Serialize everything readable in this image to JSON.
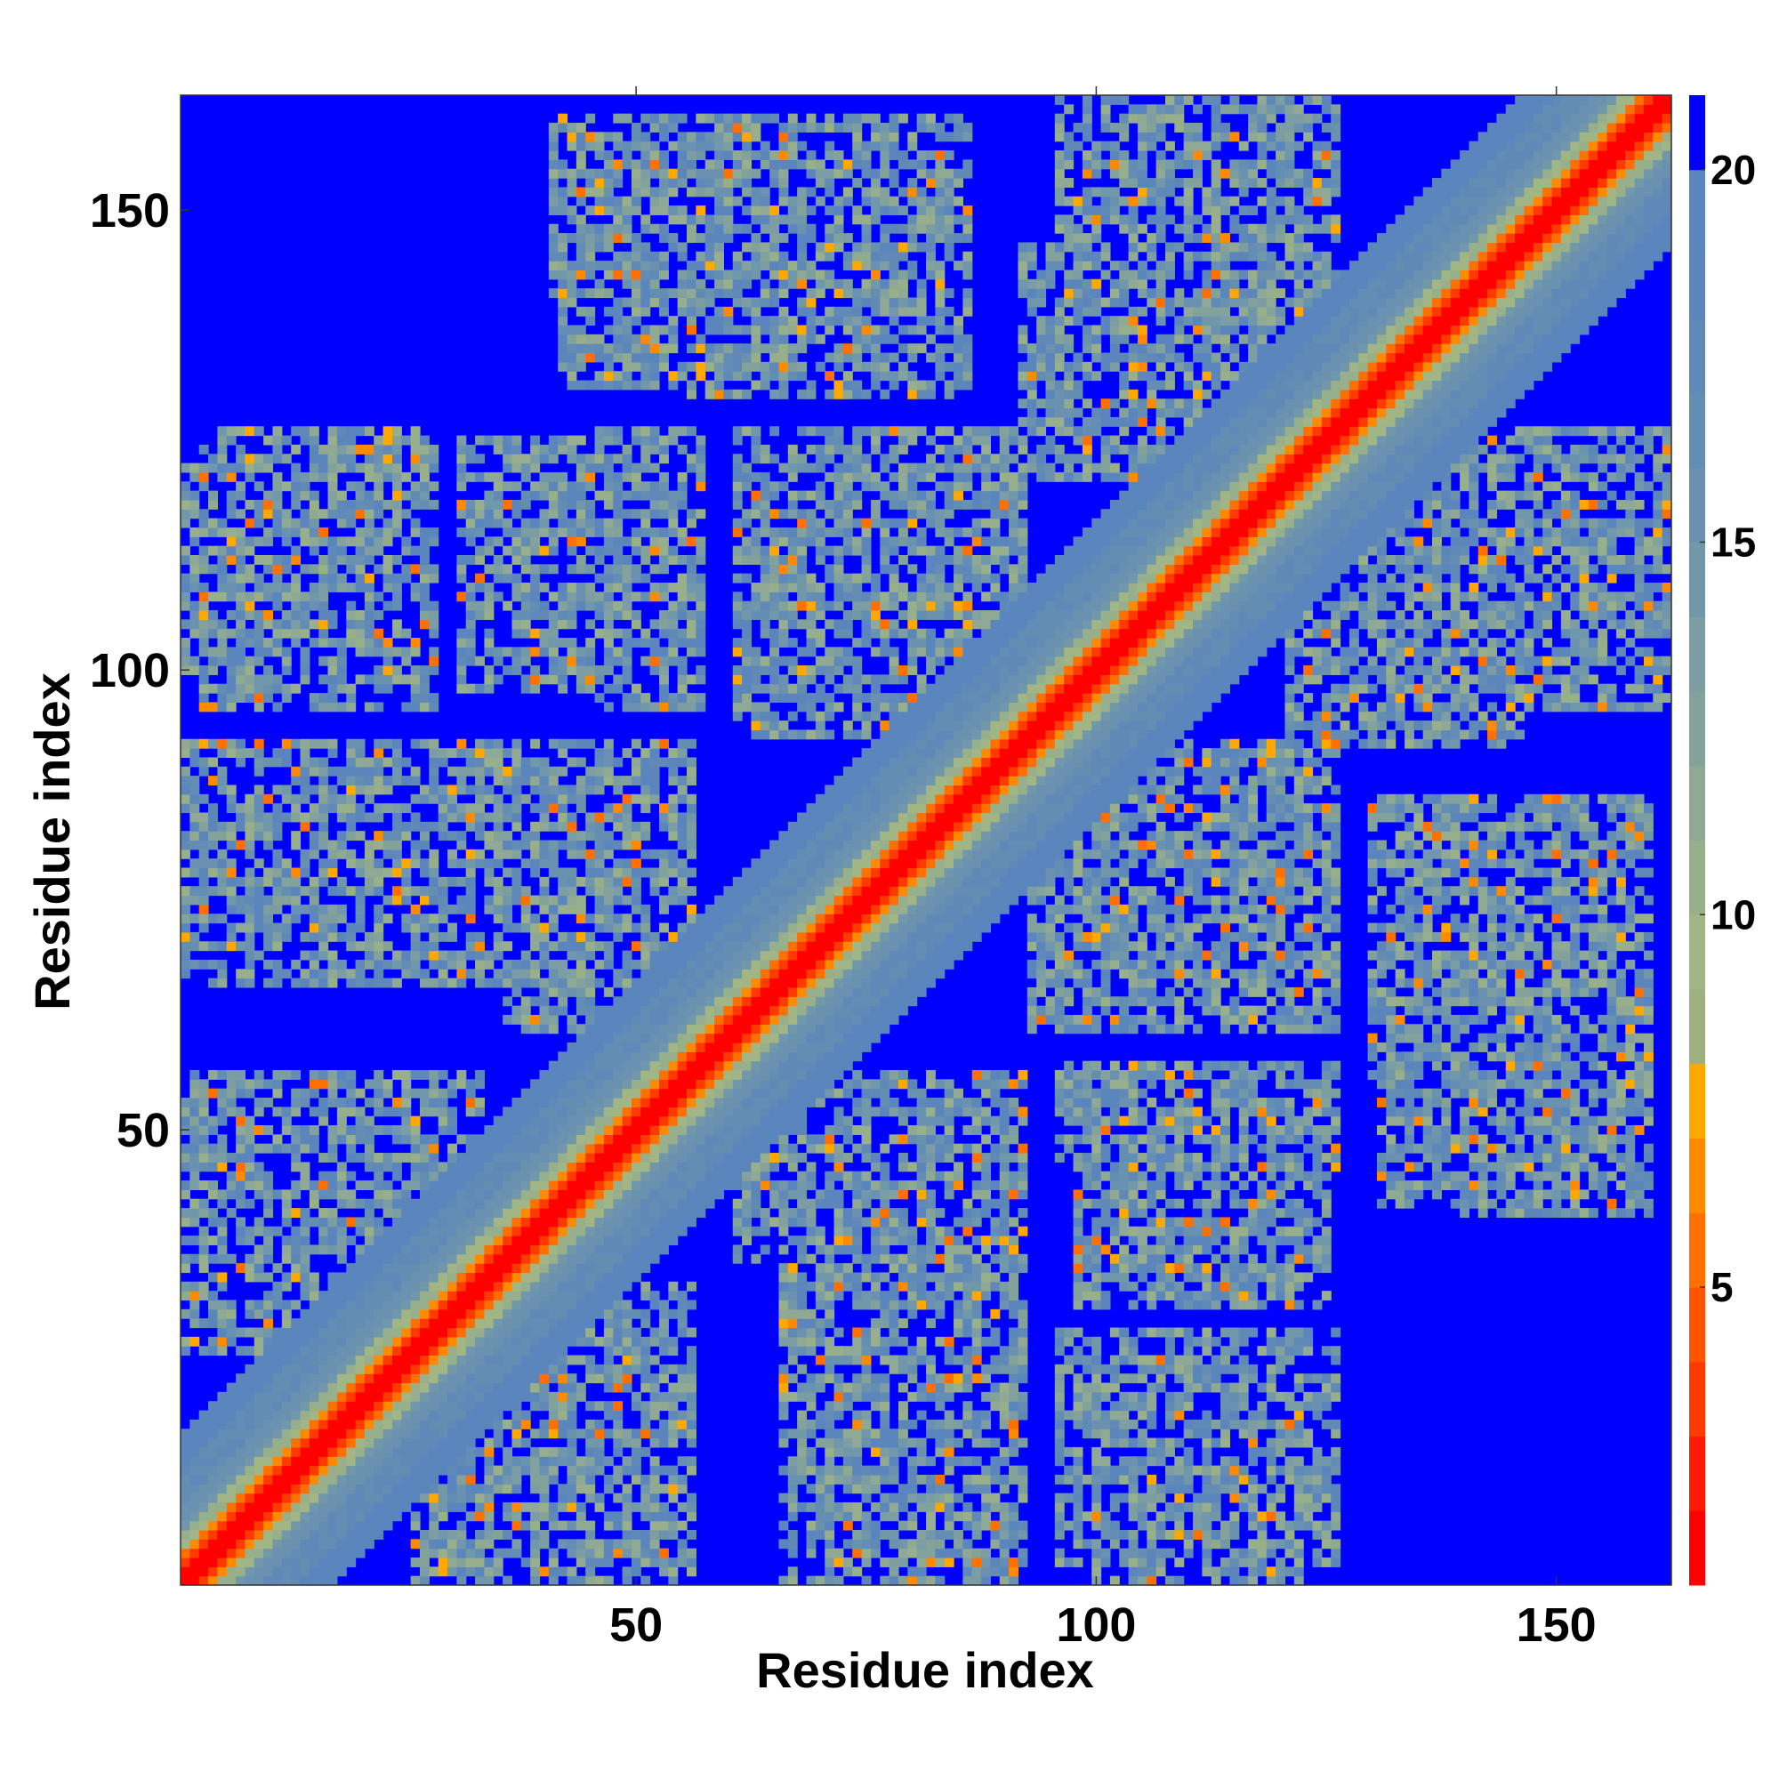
{
  "chart_data": {
    "type": "heatmap",
    "title": "",
    "xlabel": "Residue index",
    "ylabel": "Residue index",
    "xlim": [
      1,
      162
    ],
    "ylim": [
      1,
      162
    ],
    "x_ticks": [
      50,
      100,
      150
    ],
    "y_ticks": [
      50,
      100,
      150
    ],
    "grid": false,
    "legend": "colorbar-right",
    "colorbar": {
      "range": [
        1,
        21
      ],
      "ticks": [
        5,
        10,
        15,
        20
      ],
      "levels": [
        {
          "max": 2,
          "color": "#ff0000"
        },
        {
          "max": 3,
          "color": "#ff1a00"
        },
        {
          "max": 4,
          "color": "#ff3a00"
        },
        {
          "max": 5,
          "color": "#ff5500"
        },
        {
          "max": 6,
          "color": "#ff7000"
        },
        {
          "max": 7,
          "color": "#ff8a00"
        },
        {
          "max": 8,
          "color": "#ffa800"
        },
        {
          "max": 9,
          "color": "#9fb07f"
        },
        {
          "max": 10,
          "color": "#a1b585"
        },
        {
          "max": 11,
          "color": "#98af8c"
        },
        {
          "max": 12,
          "color": "#8fa995"
        },
        {
          "max": 13,
          "color": "#84a29c"
        },
        {
          "max": 14,
          "color": "#7c9da3"
        },
        {
          "max": 15,
          "color": "#7097aa"
        },
        {
          "max": 16,
          "color": "#6a92b0"
        },
        {
          "max": 17,
          "color": "#648db4"
        },
        {
          "max": 18,
          "color": "#6089b8"
        },
        {
          "max": 19,
          "color": "#5c86bb"
        },
        {
          "max": 20,
          "color": "#5a85bd"
        },
        {
          "max": 21,
          "color": "#0000ff"
        }
      ]
    },
    "description_data": {
      "n_residues": 162,
      "diagonal_band_halfwidth": 16,
      "contact_blocks": [
        {
          "x": [
            1,
            26
          ],
          "y": [
            100,
            122
          ]
        },
        {
          "x": [
            31,
            56
          ],
          "y": [
            98,
            125
          ]
        },
        {
          "x": [
            41,
            61
          ],
          "y": [
            140,
            160
          ]
        },
        {
          "x": [
            56,
            86
          ],
          "y": [
            130,
            160
          ]
        },
        {
          "x": [
            1,
            30
          ],
          "y": [
            66,
            92
          ]
        },
        {
          "x": [
            26,
            56
          ],
          "y": [
            66,
            92
          ]
        },
        {
          "x": [
            61,
            91
          ],
          "y": [
            93,
            123
          ]
        },
        {
          "x": [
            96,
            126
          ],
          "y": [
            61,
            92
          ]
        },
        {
          "x": [
            121,
            146
          ],
          "y": [
            92,
            125
          ]
        },
        {
          "x": [
            96,
            126
          ],
          "y": [
            127,
            162
          ]
        },
        {
          "x": [
            1,
            30
          ],
          "y": [
            36,
            52
          ]
        },
        {
          "x": [
            26,
            56
          ],
          "y": [
            1,
            33
          ]
        },
        {
          "x": [
            61,
            86
          ],
          "y": [
            36,
            56
          ]
        },
        {
          "x": [
            66,
            91
          ],
          "y": [
            3,
            22
          ]
        },
        {
          "x": [
            96,
            126
          ],
          "y": [
            46,
            57
          ]
        },
        {
          "x": [
            96,
            126
          ],
          "y": [
            3,
            28
          ]
        },
        {
          "x": [
            131,
            156
          ],
          "y": [
            42,
            82
          ]
        }
      ]
    }
  }
}
